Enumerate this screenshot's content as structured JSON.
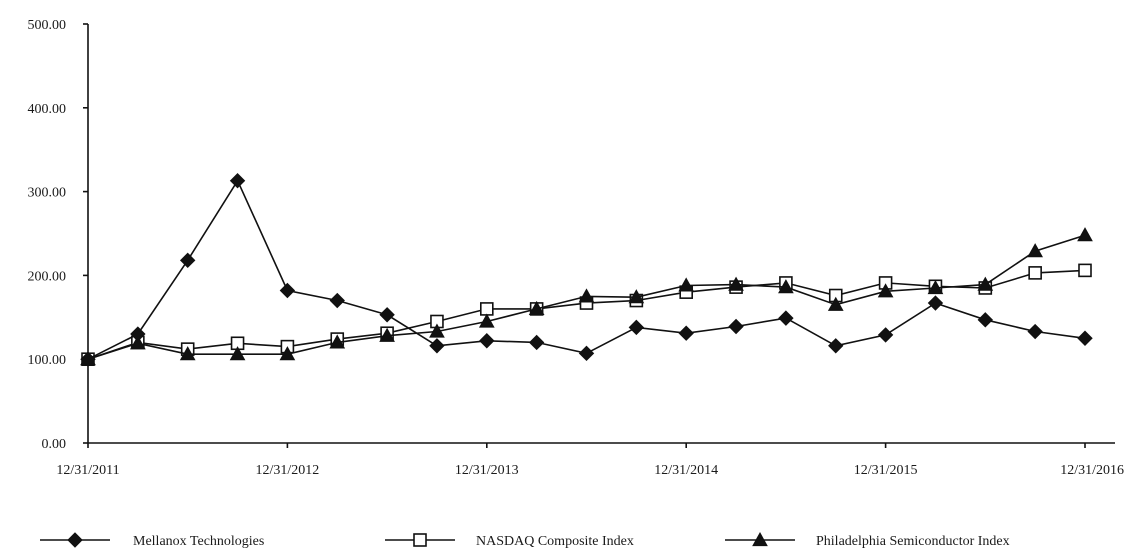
{
  "chart_data": {
    "type": "line",
    "title": "",
    "xlabel": "",
    "ylabel": "",
    "ylim": [
      0,
      500
    ],
    "y_ticks": [
      "0.00",
      "100.00",
      "200.00",
      "300.00",
      "400.00",
      "500.00"
    ],
    "x_tick_labels": [
      "12/31/2011",
      "12/31/2012",
      "12/31/2013",
      "12/31/2014",
      "12/31/2015",
      "12/31/2016"
    ],
    "x_tick_positions": [
      0,
      4,
      8,
      12,
      16,
      20
    ],
    "grid": false,
    "legend_placement": "bottom",
    "point_count": 21,
    "series": [
      {
        "name": "Mellanox Technologies",
        "marker": "diamond-filled",
        "values": [
          100,
          130,
          218,
          313,
          182,
          170,
          153,
          116,
          122,
          120,
          107,
          138,
          131,
          139,
          149,
          116,
          129,
          167,
          147,
          133,
          125
        ]
      },
      {
        "name": "NASDAQ Composite Index",
        "marker": "square-open",
        "values": [
          100,
          120,
          112,
          119,
          115,
          124,
          131,
          145,
          160,
          160,
          167,
          170,
          180,
          186,
          191,
          176,
          191,
          187,
          185,
          203,
          206
        ]
      },
      {
        "name": "Philadelphia Semiconductor Index",
        "marker": "triangle-filled",
        "values": [
          100,
          119,
          106,
          106,
          106,
          120,
          128,
          133,
          145,
          160,
          175,
          174,
          188,
          189,
          186,
          165,
          181,
          185,
          189,
          229,
          248
        ]
      }
    ]
  }
}
